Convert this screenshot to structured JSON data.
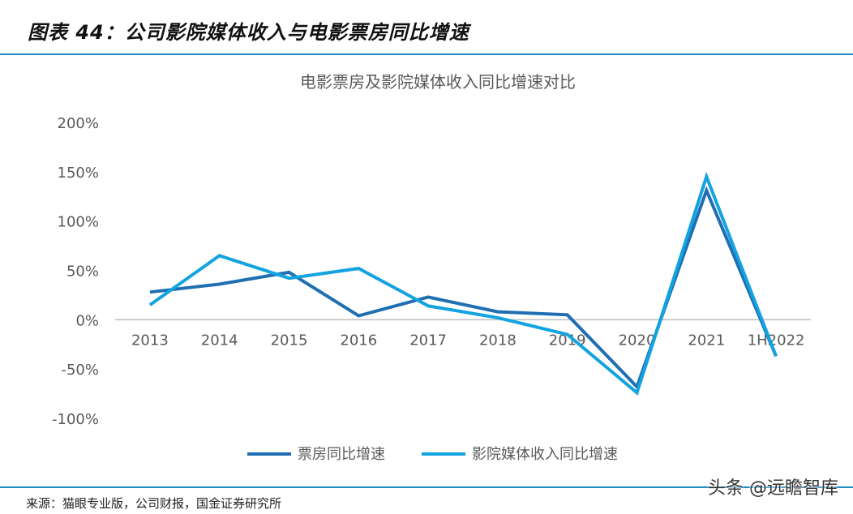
{
  "header": {
    "figure_title": "图表 44：公司影院媒体收入与电影票房同比增速"
  },
  "footer": {
    "source": "来源：猫眼专业版，公司财报，国金证券研究所",
    "watermark": "头条 @远瞻智库"
  },
  "colors": {
    "accent": "#1e8bc3",
    "box_office": "#1f6fb2",
    "media_revenue": "#12a3e0",
    "axis": "#bfbfbf",
    "text": "#595959"
  },
  "chart_data": {
    "type": "line",
    "title": "电影票房及影院媒体收入同比增速对比",
    "categories": [
      "2013",
      "2014",
      "2015",
      "2016",
      "2017",
      "2018",
      "2019",
      "2020",
      "2021",
      "1H2022"
    ],
    "series": [
      {
        "name": "票房同比增速",
        "color": "#1f6fb2",
        "values": [
          28,
          36,
          48,
          4,
          23,
          8,
          5,
          -68,
          131,
          -37
        ]
      },
      {
        "name": "影院媒体收入同比增速",
        "color": "#12a3e0",
        "values": [
          15,
          65,
          42,
          52,
          14,
          2,
          -15,
          -74,
          145,
          -37
        ]
      }
    ],
    "y_ticks": [
      "200%",
      "150%",
      "100%",
      "50%",
      "0%",
      "-50%",
      "-100%"
    ],
    "ylim": [
      -100,
      200
    ],
    "y_unit": "%",
    "legend_position": "bottom",
    "grid": false
  }
}
